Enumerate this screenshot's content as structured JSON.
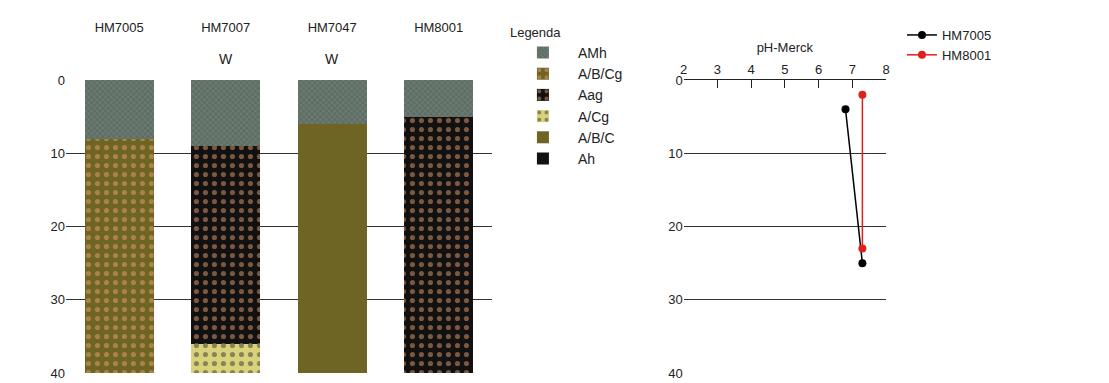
{
  "chart_data": [
    {
      "type": "bar",
      "stacked": true,
      "legend_title": "Legenda",
      "legend": "right",
      "grid": true,
      "categories": [
        "HM7005",
        "HM7007",
        "HM7047",
        "HM8001"
      ],
      "ylim": [
        40,
        0
      ],
      "yticks": [
        0,
        10,
        20,
        30,
        40
      ],
      "annotations": [
        {
          "category": "HM7007",
          "text": "W"
        },
        {
          "category": "HM7047",
          "text": "W"
        }
      ],
      "series": [
        {
          "name": "AMh",
          "color": "#5f6e64",
          "marker": "cross",
          "values": [
            8,
            9,
            6,
            5
          ]
        },
        {
          "name": "A/B/Cg",
          "color": "#6e6424",
          "marker": "dots",
          "values": [
            32,
            0,
            0,
            0
          ]
        },
        {
          "name": "Aag",
          "color": "#111111",
          "marker": "dots",
          "values": [
            0,
            27,
            0,
            35
          ]
        },
        {
          "name": "A/Cg",
          "color": "#d9d27a",
          "marker": "dots",
          "values": [
            0,
            4,
            0,
            0
          ]
        },
        {
          "name": "A/B/C",
          "color": "#6e6424",
          "marker": "solid",
          "values": [
            0,
            0,
            34,
            0
          ]
        },
        {
          "name": "Ah",
          "color": "#111111",
          "marker": "solid",
          "values": [
            0,
            0,
            0,
            0
          ]
        }
      ]
    },
    {
      "type": "line",
      "x_label": "pH-Merck",
      "legend": "top right",
      "grid": true,
      "xlim": [
        2,
        8
      ],
      "xticks": [
        2,
        3,
        4,
        5,
        6,
        7,
        8
      ],
      "ylim": [
        40,
        0
      ],
      "yticks": [
        0,
        10,
        20,
        30,
        40
      ],
      "series": [
        {
          "name": "HM7005",
          "color": "#000000",
          "marker": "circle",
          "x": [
            6.8,
            7.3
          ],
          "y": [
            4,
            25
          ]
        },
        {
          "name": "HM8001",
          "color": "#e0201c",
          "marker": "circle",
          "x": [
            7.3,
            7.3
          ],
          "y": [
            2,
            23
          ]
        }
      ]
    }
  ]
}
